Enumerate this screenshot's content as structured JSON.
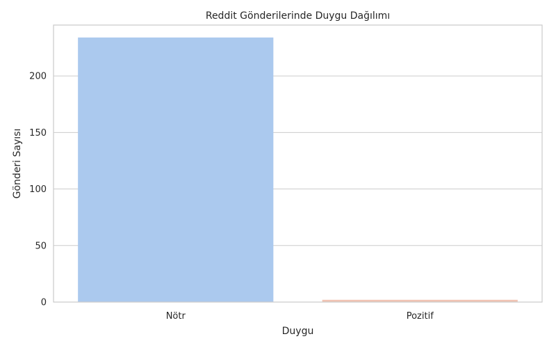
{
  "chart_data": {
    "type": "bar",
    "title": "Reddit Gönderilerinde Duygu Dağılımı",
    "xlabel": "Duygu",
    "ylabel": "Gönderi Sayısı",
    "categories": [
      "Nötr",
      "Pozitif"
    ],
    "values": [
      234,
      2
    ],
    "colors": [
      "#abc9ee",
      "#f1c3b3"
    ],
    "ylim": [
      0,
      245
    ],
    "yticks": [
      0,
      50,
      100,
      150,
      200
    ],
    "grid": true
  }
}
